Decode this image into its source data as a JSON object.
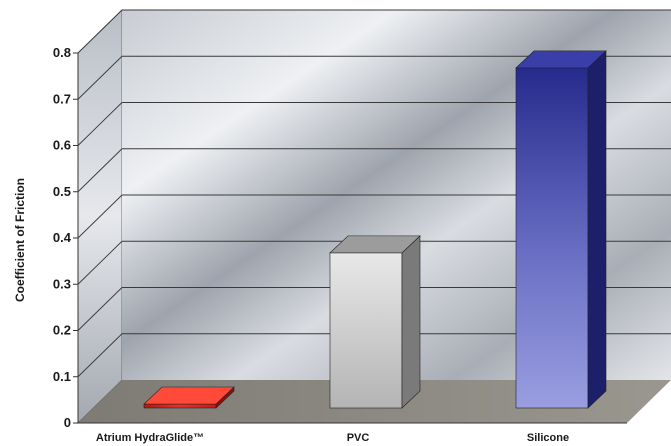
{
  "chart_data": {
    "type": "bar",
    "style": "3d",
    "title": "",
    "xlabel": "",
    "ylabel": "Coefficient of Friction",
    "categories": [
      "Atrium HydraGlide™",
      "PVC",
      "Silicone"
    ],
    "values": [
      0.04,
      0.37,
      0.77
    ],
    "ylim": [
      0,
      0.8
    ],
    "yticks": [
      0,
      0.1,
      0.2,
      0.3,
      0.4,
      0.5,
      0.6,
      0.7,
      0.8
    ],
    "ytick_labels": [
      "0",
      "0.1",
      "0.2",
      "0.3",
      "0.4",
      "0.5",
      "0.6",
      "0.7",
      "0.8"
    ],
    "grid": true,
    "legend": "none",
    "bar_colors": [
      "#d8221c",
      "#c9c9c9",
      "#3b3fa8"
    ]
  }
}
